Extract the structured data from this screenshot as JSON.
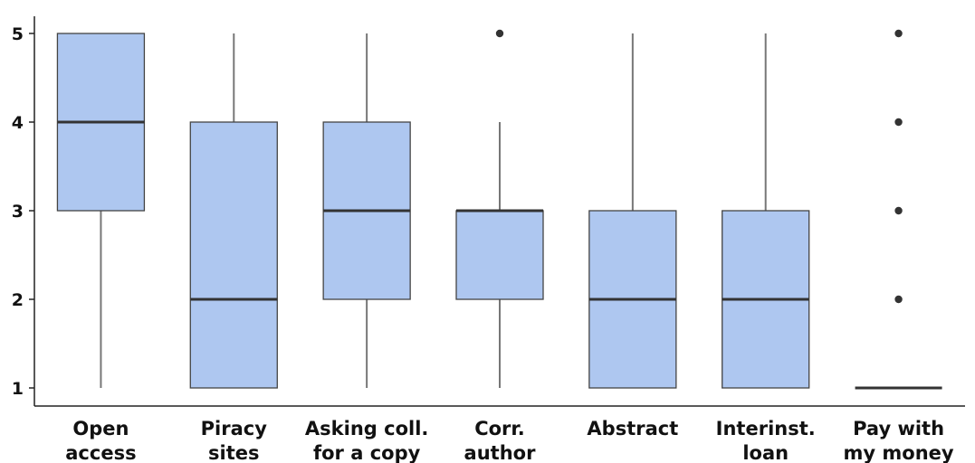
{
  "chart_data": {
    "type": "boxplot",
    "categories": [
      [
        "Open",
        "access"
      ],
      [
        "Piracy",
        "sites"
      ],
      [
        "Asking coll.",
        "for a copy"
      ],
      [
        "Corr.",
        "author"
      ],
      [
        "Abstract"
      ],
      [
        "Interinst.",
        "loan"
      ],
      [
        "Pay with",
        "my money"
      ]
    ],
    "boxes": [
      {
        "whisker_low": 1,
        "q1": 3,
        "median": 4,
        "q3": 5,
        "whisker_high": 5,
        "outliers": []
      },
      {
        "whisker_low": 1,
        "q1": 1,
        "median": 2,
        "q3": 4,
        "whisker_high": 5,
        "outliers": []
      },
      {
        "whisker_low": 1,
        "q1": 2,
        "median": 3,
        "q3": 4,
        "whisker_high": 5,
        "outliers": []
      },
      {
        "whisker_low": 1,
        "q1": 2,
        "median": 3,
        "q3": 3,
        "whisker_high": 4,
        "outliers": [
          5
        ]
      },
      {
        "whisker_low": 1,
        "q1": 1,
        "median": 2,
        "q3": 3,
        "whisker_high": 5,
        "outliers": []
      },
      {
        "whisker_low": 1,
        "q1": 1,
        "median": 2,
        "q3": 3,
        "whisker_high": 5,
        "outliers": []
      },
      {
        "whisker_low": 1,
        "q1": 1,
        "median": 1,
        "q3": 1,
        "whisker_high": 1,
        "outliers": [
          2,
          3,
          4,
          5
        ]
      }
    ],
    "y_ticks": [
      1,
      2,
      3,
      4,
      5
    ],
    "ylim": [
      0.8,
      5.2
    ],
    "title": "",
    "xlabel": "",
    "ylabel": "",
    "grid": false,
    "box_color": "#aec7f0",
    "box_edge_color": "#444444",
    "median_color": "#333333",
    "whisker_color": "#777777",
    "axis_color": "#222222"
  }
}
